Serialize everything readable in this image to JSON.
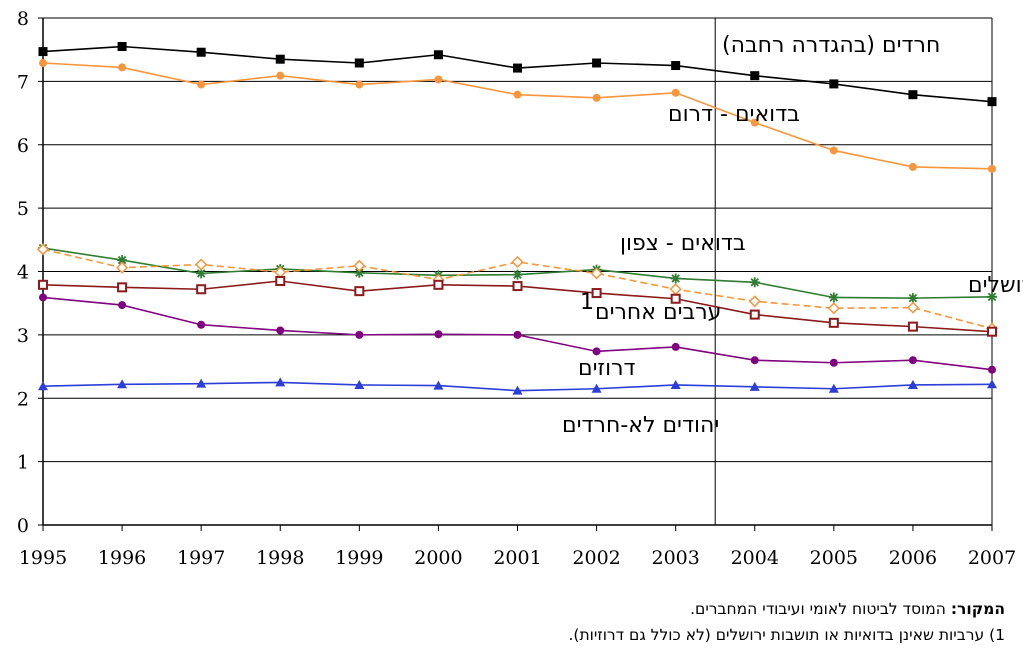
{
  "chart_data": {
    "type": "line",
    "title": "",
    "xlabel": "",
    "ylabel": "",
    "x": [
      1995,
      1996,
      1997,
      1998,
      1999,
      2000,
      2001,
      2002,
      2003,
      2004,
      2005,
      2006,
      2007
    ],
    "ylim": [
      0,
      8
    ],
    "yticks": [
      0,
      1,
      2,
      3,
      4,
      5,
      6,
      7,
      8
    ],
    "grid": true,
    "divider_between": [
      2003,
      2004
    ],
    "series": [
      {
        "name": "חרדים (בהגדרה רחבה)",
        "color": "#000000",
        "marker": "filled-square",
        "dashed": false,
        "values": [
          7.47,
          7.55,
          7.46,
          7.35,
          7.29,
          7.42,
          7.21,
          7.29,
          7.25,
          7.09,
          6.96,
          6.79,
          6.68
        ]
      },
      {
        "name": "בדואים - דרום",
        "color": "#F7963C",
        "marker": "filled-circle",
        "dashed": false,
        "values": [
          7.29,
          7.22,
          6.95,
          7.09,
          6.95,
          7.03,
          6.79,
          6.74,
          6.82,
          6.35,
          5.91,
          5.65,
          5.62
        ]
      },
      {
        "name": "ערביי ירושלים",
        "color": "#2E7D32",
        "marker": "star",
        "dashed": false,
        "values": [
          4.37,
          4.18,
          3.97,
          4.04,
          3.98,
          3.94,
          3.95,
          4.03,
          3.89,
          3.83,
          3.59,
          3.58,
          3.6
        ]
      },
      {
        "name": "בדואים - צפון",
        "color": "#F7963C",
        "marker": "open-diamond",
        "dashed": true,
        "values": [
          4.35,
          4.06,
          4.11,
          3.99,
          4.09,
          3.87,
          4.15,
          3.97,
          3.72,
          3.53,
          3.42,
          3.43,
          3.1
        ]
      },
      {
        "name": "ערבים אחרים",
        "color": "#8B1A1A",
        "marker": "open-square",
        "dashed": false,
        "values": [
          3.79,
          3.75,
          3.72,
          3.85,
          3.69,
          3.79,
          3.77,
          3.66,
          3.57,
          3.32,
          3.19,
          3.13,
          3.05
        ]
      },
      {
        "name": "דרוזים",
        "color": "#800080",
        "marker": "filled-circle",
        "dashed": false,
        "values": [
          3.59,
          3.47,
          3.16,
          3.07,
          3.0,
          3.01,
          3.0,
          2.74,
          2.81,
          2.6,
          2.56,
          2.6,
          2.45
        ]
      },
      {
        "name": "יהודים לא-חרדים",
        "color": "#2B3FD8",
        "marker": "filled-triangle",
        "dashed": false,
        "values": [
          2.19,
          2.22,
          2.23,
          2.25,
          2.21,
          2.2,
          2.12,
          2.15,
          2.21,
          2.18,
          2.15,
          2.21,
          2.22
        ]
      }
    ],
    "series_labels": [
      {
        "text": "חרדים (בהגדרה רחבה)",
        "sup": ""
      },
      {
        "text": "בדואים - דרום",
        "sup": ""
      },
      {
        "text": "בדואים - צפון",
        "sup": ""
      },
      {
        "text": "ערביי ירושלים",
        "sup": ""
      },
      {
        "text": "ערבים אחרים",
        "sup": "1"
      },
      {
        "text": "דרוזים",
        "sup": ""
      },
      {
        "text": "יהודים לא-חרדים",
        "sup": ""
      }
    ]
  },
  "footer": {
    "source_label": "המקור:",
    "source_text": " המוסד לביטוח לאומי ועיבודי המחברים.",
    "footnote": "1) ערביות שאינן בדואיות או תושבות ירושלים (לא כולל גם דרוזיות)."
  }
}
